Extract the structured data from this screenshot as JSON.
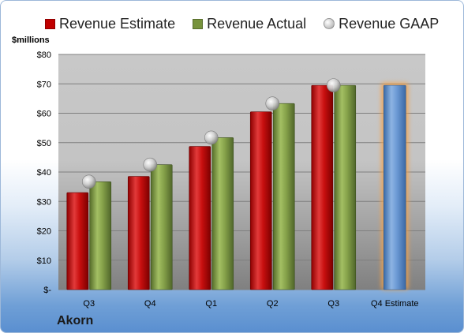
{
  "chart_data": {
    "type": "bar",
    "ylabel": "$millions",
    "ylim": [
      0,
      80
    ],
    "yticks": [
      0,
      10,
      20,
      30,
      40,
      50,
      60,
      70,
      80
    ],
    "ytick_labels": [
      "$-",
      "$10",
      "$20",
      "$30",
      "$40",
      "$50",
      "$60",
      "$70",
      "$80"
    ],
    "categories": [
      "Q3",
      "Q4",
      "Q1",
      "Q2",
      "Q3",
      "Q4 Estimate"
    ],
    "series": [
      {
        "name": "Revenue Estimate",
        "type": "bar",
        "color": "#c00000",
        "values": [
          33,
          38.5,
          48.7,
          60.5,
          69.5,
          null
        ]
      },
      {
        "name": "Revenue Actual",
        "type": "bar",
        "color": "#77933c",
        "values": [
          36.7,
          42.5,
          51.7,
          63.3,
          69.5,
          null
        ]
      },
      {
        "name": "Revenue GAAP",
        "type": "scatter",
        "color": "#bfbfbf",
        "values": [
          36.7,
          42.5,
          51.7,
          63.3,
          69.5,
          null
        ]
      },
      {
        "name": "Q4 Estimate",
        "type": "bar",
        "color": "#4f81bd",
        "highlight": "#f7a246",
        "values": [
          null,
          null,
          null,
          null,
          null,
          69.5
        ]
      }
    ],
    "legend": "top",
    "grid": true
  },
  "company": "Akorn"
}
